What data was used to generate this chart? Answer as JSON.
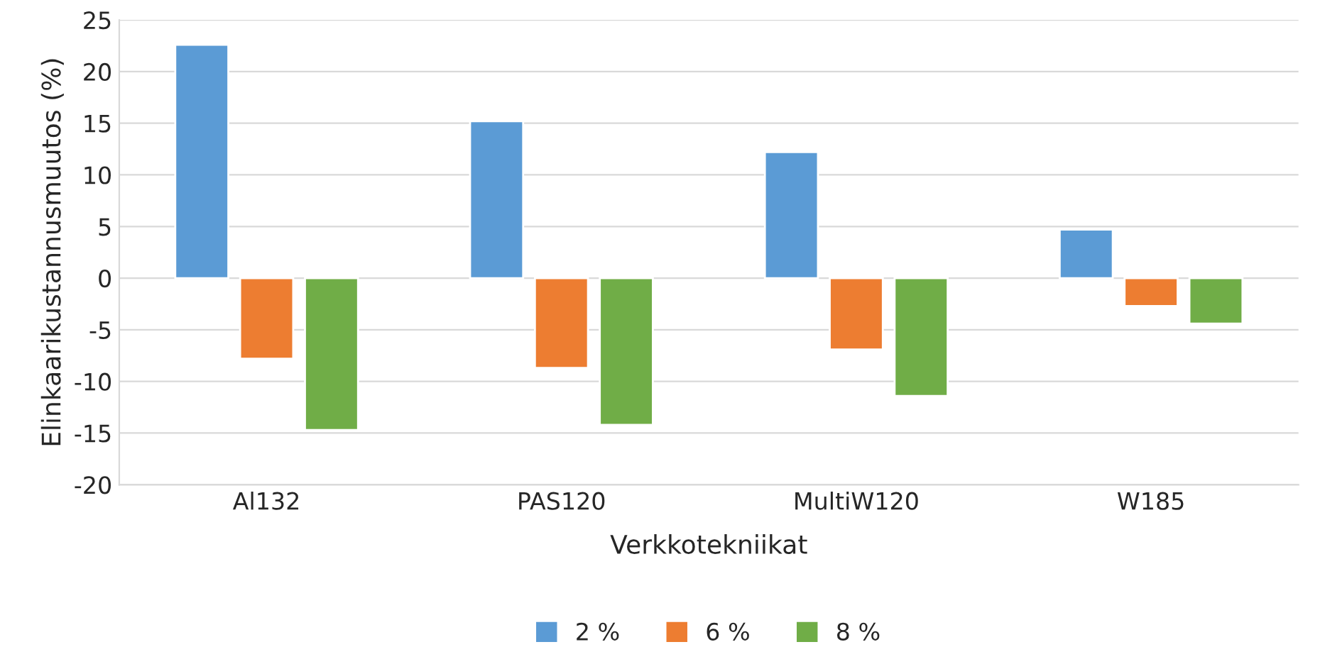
{
  "chart_data": {
    "type": "bar",
    "xlabel": "Verkkotekniikat",
    "ylabel": "Elinkaarikustannusmuutos (%)",
    "categories": [
      "Al132",
      "PAS120",
      "MultiW120",
      "W185"
    ],
    "series": [
      {
        "name": "2 %",
        "color": "#5b9bd5",
        "values": [
          22.6,
          15.2,
          12.2,
          4.7
        ]
      },
      {
        "name": "6 %",
        "color": "#ed7d31",
        "values": [
          -7.8,
          -8.7,
          -6.9,
          -2.7
        ]
      },
      {
        "name": "8 %",
        "color": "#70ad47",
        "values": [
          -14.7,
          -14.2,
          -11.4,
          -4.4
        ]
      }
    ],
    "ylim": [
      -20,
      25
    ],
    "yticks": [
      -20,
      -15,
      -10,
      -5,
      0,
      5,
      10,
      15,
      20,
      25
    ],
    "grid": "y",
    "legend": "bottom"
  }
}
